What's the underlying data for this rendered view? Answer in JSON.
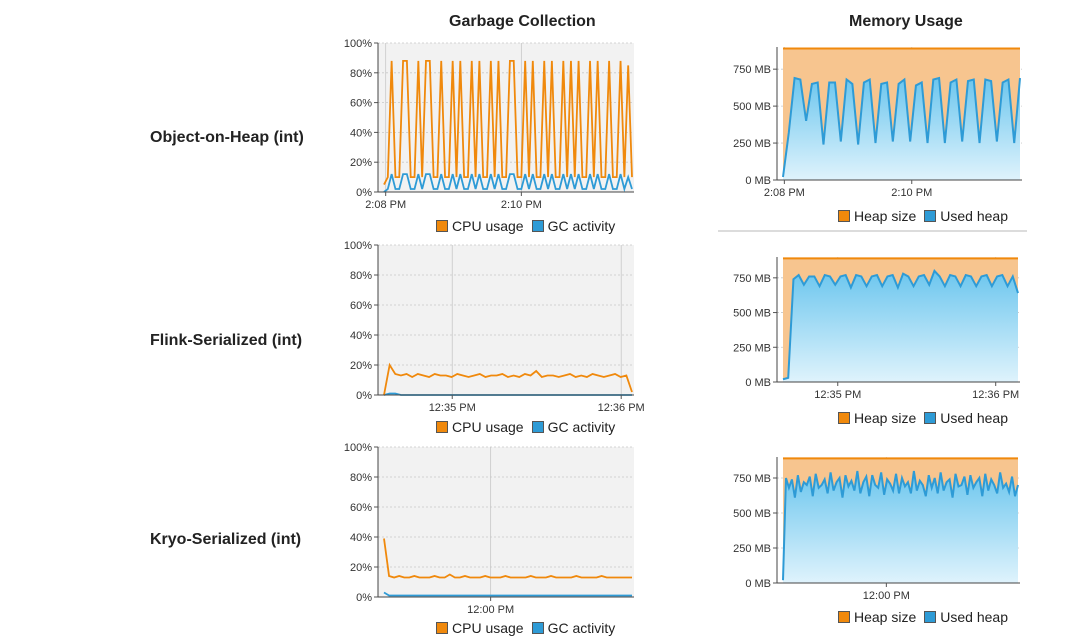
{
  "columns": {
    "gc": "Garbage Collection",
    "mem": "Memory Usage"
  },
  "rows": [
    {
      "label": "Object-on-Heap (int)"
    },
    {
      "label": "Flink-Serialized (int)"
    },
    {
      "label": "Kryo-Serialized (int)"
    }
  ],
  "legends": {
    "gc": {
      "a": "CPU usage",
      "b": "GC activity"
    },
    "mem": {
      "a": "Heap size",
      "b": "Used heap"
    }
  },
  "colors": {
    "cpu": "#f0890c",
    "gc": "#2e9bd6",
    "heap_line": "#f0890c",
    "heap_fill": "#f7c58f",
    "used_line": "#2e9bd6"
  },
  "chart_data": [
    {
      "type": "line",
      "id": "gc-object-on-heap",
      "title": "",
      "yticks": [
        "0%",
        "20%",
        "40%",
        "60%",
        "80%",
        "100%"
      ],
      "ylim": [
        0,
        100
      ],
      "xticks": [
        "2:08 PM",
        "2:10 PM"
      ],
      "series": [
        {
          "name": "CPU usage",
          "values": [
            5,
            10,
            88,
            10,
            10,
            88,
            88,
            10,
            10,
            88,
            10,
            88,
            88,
            10,
            10,
            88,
            10,
            10,
            88,
            10,
            88,
            10,
            10,
            88,
            10,
            88,
            10,
            10,
            88,
            10,
            88,
            10,
            10,
            88,
            88,
            10,
            10,
            88,
            10,
            88,
            10,
            10,
            88,
            10,
            88,
            10,
            10,
            88,
            10,
            88,
            10,
            88,
            10,
            10,
            88,
            10,
            88,
            10,
            10,
            88,
            10,
            10,
            88,
            10,
            85,
            10
          ]
        },
        {
          "name": "GC activity",
          "values": [
            0,
            2,
            12,
            2,
            2,
            12,
            12,
            2,
            2,
            12,
            2,
            12,
            12,
            2,
            2,
            12,
            2,
            2,
            12,
            2,
            12,
            2,
            2,
            12,
            2,
            12,
            2,
            2,
            12,
            2,
            12,
            2,
            2,
            12,
            12,
            2,
            2,
            12,
            2,
            12,
            2,
            2,
            12,
            2,
            12,
            2,
            2,
            12,
            2,
            12,
            2,
            12,
            2,
            2,
            12,
            2,
            12,
            2,
            2,
            12,
            2,
            2,
            12,
            2,
            10,
            2
          ]
        }
      ]
    },
    {
      "type": "line",
      "id": "gc-flink-serialized",
      "title": "",
      "yticks": [
        "0%",
        "20%",
        "40%",
        "60%",
        "80%",
        "100%"
      ],
      "ylim": [
        0,
        100
      ],
      "xticks": [
        "12:35 PM",
        "12:36 PM"
      ],
      "series": [
        {
          "name": "CPU usage",
          "values": [
            0,
            20,
            14,
            13,
            14,
            12,
            14,
            13,
            12,
            14,
            13,
            13,
            12,
            14,
            13,
            12,
            13,
            14,
            12,
            13,
            13,
            14,
            12,
            13,
            12,
            14,
            13,
            16,
            12,
            13,
            13,
            12,
            13,
            14,
            12,
            13,
            12,
            14,
            13,
            12,
            13,
            14,
            12,
            13,
            2
          ]
        },
        {
          "name": "GC activity",
          "values": [
            0,
            1,
            1,
            0,
            0,
            0,
            0,
            0,
            0,
            0,
            0,
            0,
            0,
            0,
            0,
            0,
            0,
            0,
            0,
            0,
            0,
            0,
            0,
            0,
            0,
            0,
            0,
            0,
            0,
            0,
            0,
            0,
            0,
            0,
            0,
            0,
            0,
            0,
            0,
            0,
            0,
            0,
            0,
            0,
            0
          ]
        }
      ]
    },
    {
      "type": "line",
      "id": "gc-kryo-serialized",
      "title": "",
      "yticks": [
        "0%",
        "20%",
        "40%",
        "60%",
        "80%",
        "100%"
      ],
      "ylim": [
        0,
        100
      ],
      "xticks": [
        "12:00 PM"
      ],
      "series": [
        {
          "name": "CPU usage",
          "values": [
            39,
            14,
            13,
            14,
            13,
            13,
            14,
            13,
            13,
            13,
            14,
            13,
            13,
            15,
            13,
            13,
            14,
            13,
            13,
            13,
            14,
            13,
            13,
            13,
            14,
            13,
            13,
            13,
            13,
            14,
            13,
            13,
            13,
            14,
            13,
            13,
            13,
            13,
            14,
            13,
            13,
            13,
            13,
            14,
            13,
            13,
            13,
            13,
            13,
            13
          ]
        },
        {
          "name": "GC activity",
          "values": [
            3,
            1,
            1,
            1,
            1,
            1,
            1,
            1,
            1,
            1,
            1,
            1,
            1,
            1,
            1,
            1,
            1,
            1,
            1,
            1,
            1,
            1,
            1,
            1,
            1,
            1,
            1,
            1,
            1,
            1,
            1,
            1,
            1,
            1,
            1,
            1,
            1,
            1,
            1,
            1,
            1,
            1,
            1,
            1,
            1,
            1,
            1,
            1,
            1,
            1
          ]
        }
      ]
    },
    {
      "type": "area",
      "id": "mem-object-on-heap",
      "title": "",
      "yticks": [
        "0 MB",
        "250 MB",
        "500 MB",
        "750 MB"
      ],
      "ylim": [
        0,
        900
      ],
      "xticks": [
        "2:08 PM",
        "2:10 PM"
      ],
      "series": [
        {
          "name": "Heap size",
          "values": [
            890,
            890,
            890,
            890,
            890,
            890,
            890,
            890,
            890,
            890,
            890,
            890,
            890,
            890,
            890,
            890,
            890,
            890,
            890,
            890,
            890,
            890,
            890,
            890,
            890,
            890,
            890,
            890,
            890,
            890,
            890,
            890,
            890,
            890,
            890,
            890,
            890,
            890,
            890,
            890,
            890,
            890
          ]
        },
        {
          "name": "Used heap",
          "values": [
            20,
            320,
            690,
            680,
            400,
            650,
            660,
            240,
            660,
            660,
            260,
            680,
            650,
            240,
            660,
            680,
            250,
            650,
            660,
            260,
            650,
            680,
            260,
            640,
            660,
            250,
            680,
            690,
            250,
            660,
            680,
            260,
            670,
            680,
            250,
            680,
            670,
            260,
            660,
            680,
            250,
            690
          ]
        }
      ]
    },
    {
      "type": "area",
      "id": "mem-flink-serialized",
      "title": "",
      "yticks": [
        "0 MB",
        "250 MB",
        "500 MB",
        "750 MB"
      ],
      "ylim": [
        0,
        900
      ],
      "xticks": [
        "12:35 PM",
        "12:36 PM"
      ],
      "series": [
        {
          "name": "Heap size",
          "values": [
            890,
            890,
            890,
            890,
            890,
            890,
            890,
            890,
            890,
            890,
            890,
            890,
            890,
            890,
            890,
            890,
            890,
            890,
            890,
            890,
            890,
            890,
            890,
            890,
            890,
            890,
            890,
            890,
            890,
            890,
            890,
            890,
            890,
            890,
            890,
            890,
            890,
            890,
            890,
            890,
            890,
            890,
            890,
            890,
            890,
            890
          ]
        },
        {
          "name": "Used heap",
          "values": [
            20,
            30,
            740,
            770,
            700,
            760,
            760,
            690,
            770,
            760,
            700,
            760,
            770,
            680,
            770,
            760,
            690,
            760,
            770,
            690,
            760,
            770,
            680,
            780,
            760,
            690,
            760,
            770,
            700,
            800,
            760,
            690,
            770,
            760,
            690,
            770,
            760,
            690,
            760,
            770,
            690,
            760,
            770,
            690,
            760,
            640
          ]
        }
      ]
    },
    {
      "type": "area",
      "id": "mem-kryo-serialized",
      "title": "",
      "yticks": [
        "0 MB",
        "250 MB",
        "500 MB",
        "750 MB"
      ],
      "ylim": [
        0,
        900
      ],
      "xticks": [
        "12:00 PM"
      ],
      "series": [
        {
          "name": "Heap size",
          "values": [
            890,
            890,
            890,
            890,
            890,
            890,
            890,
            890,
            890,
            890,
            890,
            890,
            890,
            890,
            890,
            890,
            890,
            890,
            890,
            890,
            890,
            890,
            890,
            890,
            890,
            890,
            890,
            890,
            890,
            890,
            890,
            890,
            890,
            890,
            890,
            890,
            890,
            890,
            890,
            890,
            890,
            890,
            890,
            890,
            890,
            890,
            890,
            890,
            890,
            890,
            890,
            890,
            890,
            890,
            890,
            890,
            890,
            890,
            890,
            890,
            890,
            890,
            890,
            890,
            890,
            890,
            890,
            890,
            890,
            890,
            890,
            890,
            890,
            890,
            890,
            890,
            890,
            890,
            890,
            890
          ]
        },
        {
          "name": "Used heap",
          "values": [
            20,
            750,
            680,
            740,
            610,
            770,
            650,
            720,
            700,
            760,
            620,
            780,
            680,
            700,
            740,
            640,
            790,
            660,
            720,
            750,
            610,
            770,
            690,
            730,
            660,
            800,
            640,
            720,
            760,
            620,
            770,
            700,
            680,
            790,
            630,
            740,
            710,
            660,
            780,
            640,
            750,
            690,
            720,
            640,
            800,
            660,
            730,
            700,
            620,
            770,
            680,
            750,
            640,
            790,
            660,
            720,
            740,
            610,
            780,
            690,
            700,
            760,
            630,
            770,
            680,
            720,
            750,
            620,
            780,
            660,
            740,
            700,
            640,
            790,
            680,
            710,
            650,
            760,
            620,
            700
          ]
        }
      ]
    }
  ]
}
